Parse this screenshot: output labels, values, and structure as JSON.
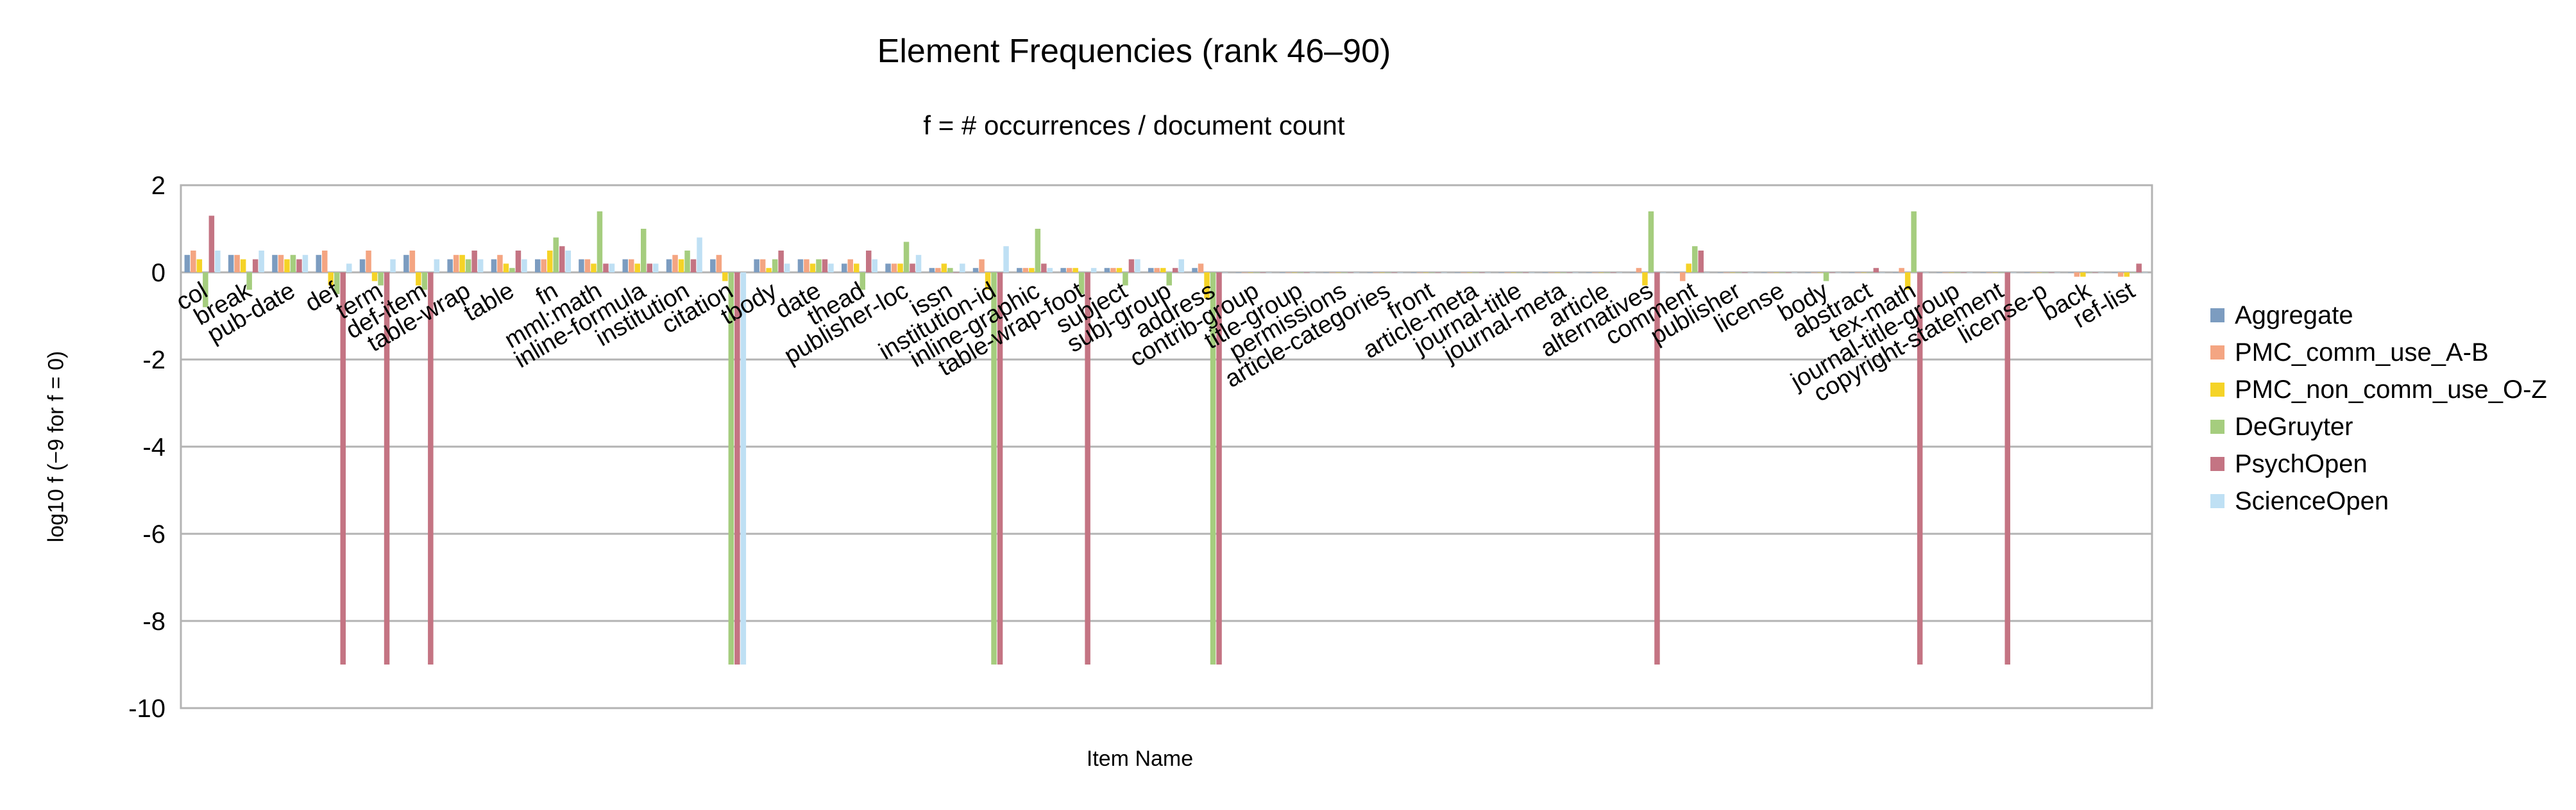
{
  "chart_data": {
    "type": "bar",
    "title": "Element Frequencies (rank 46–90)",
    "subtitle": "f = # occurrences / document count",
    "xlabel": "Item Name",
    "ylabel": "log10  f  (−9 for f = 0)",
    "ylim": [
      -10,
      2
    ],
    "yticks": [
      2,
      0,
      -2,
      -4,
      -6,
      -8,
      -10
    ],
    "grid": true,
    "legend_position": "right",
    "categories": [
      "col",
      "break",
      "pub-date",
      "def",
      "term",
      "def-item",
      "table-wrap",
      "table",
      "fn",
      "mml:math",
      "inline-formula",
      "institution",
      "citation",
      "tbody",
      "date",
      "thead",
      "publisher-loc",
      "issn",
      "institution-id",
      "inline-graphic",
      "table-wrap-foot",
      "subject",
      "subj-group",
      "address",
      "contrib-group",
      "title-group",
      "permissions",
      "article-categories",
      "front",
      "article-meta",
      "journal-title",
      "journal-meta",
      "article",
      "alternatives",
      "comment",
      "publisher",
      "license",
      "body",
      "abstract",
      "tex-math",
      "journal-title-group",
      "copyright-statement",
      "license-p",
      "back",
      "ref-list"
    ],
    "series": [
      {
        "name": "Aggregate",
        "color": "#7c9cc0",
        "values": [
          0.4,
          0.4,
          0.4,
          0.4,
          0.3,
          0.4,
          0.3,
          0.3,
          0.3,
          0.3,
          0.3,
          0.3,
          0.3,
          0.3,
          0.3,
          0.2,
          0.2,
          0.1,
          0.1,
          0.1,
          0.1,
          0.1,
          0.1,
          0.1,
          0.0,
          0.0,
          0.0,
          0.0,
          0.0,
          0.0,
          0.0,
          0.0,
          0.0,
          0.0,
          0.0,
          0.0,
          0.0,
          0.0,
          0.0,
          0.0,
          0.0,
          0.0,
          0.0,
          0.0,
          0.0
        ]
      },
      {
        "name": "PMC_comm_use_A-B",
        "color": "#f4a582",
        "values": [
          0.5,
          0.4,
          0.4,
          0.5,
          0.5,
          0.5,
          0.4,
          0.4,
          0.3,
          0.3,
          0.3,
          0.4,
          0.4,
          0.3,
          0.3,
          0.3,
          0.2,
          0.1,
          0.3,
          0.1,
          0.1,
          0.1,
          0.1,
          0.2,
          0.0,
          0.0,
          0.0,
          0.0,
          0.0,
          0.0,
          0.0,
          0.0,
          0.0,
          0.1,
          -0.2,
          0.0,
          0.0,
          0.0,
          0.0,
          0.1,
          0.0,
          0.0,
          0.0,
          -0.1,
          -0.1
        ]
      },
      {
        "name": "PMC_non_comm_use_O-Z",
        "color": "#f5d327",
        "values": [
          0.3,
          0.3,
          0.3,
          -0.3,
          -0.2,
          -0.3,
          0.4,
          0.2,
          0.5,
          0.2,
          0.2,
          0.3,
          -0.2,
          0.1,
          0.2,
          0.2,
          0.2,
          0.2,
          -0.4,
          0.1,
          0.1,
          0.1,
          0.1,
          -0.6,
          0.0,
          0.0,
          0.0,
          0.0,
          0.0,
          0.0,
          0.0,
          0.0,
          0.0,
          -0.3,
          0.2,
          0.0,
          0.0,
          0.0,
          0.0,
          -0.4,
          0.0,
          0.0,
          0.0,
          -0.1,
          -0.1
        ]
      },
      {
        "name": "DeGruyter",
        "color": "#a5cd7e",
        "values": [
          -0.8,
          -0.4,
          0.4,
          -0.5,
          -0.3,
          -0.4,
          0.3,
          0.1,
          0.8,
          1.4,
          1.0,
          0.5,
          -9,
          0.3,
          0.3,
          -0.4,
          0.7,
          0.1,
          -9,
          1.0,
          -0.5,
          -0.3,
          -0.3,
          -9,
          0.0,
          0.0,
          0.0,
          0.0,
          0.0,
          0.0,
          0.0,
          0.0,
          0.0,
          1.4,
          0.6,
          0.0,
          0.0,
          -0.2,
          0.0,
          1.4,
          0.0,
          0.0,
          0.0,
          0.0,
          0.0
        ]
      },
      {
        "name": "PsychOpen",
        "color": "#c47483",
        "values": [
          1.3,
          0.3,
          0.3,
          -9,
          -9,
          -9,
          0.5,
          0.5,
          0.6,
          0.2,
          0.2,
          0.3,
          -9,
          0.5,
          0.3,
          0.5,
          0.2,
          0.0,
          -9,
          0.2,
          -9,
          0.3,
          0.1,
          -9,
          0.0,
          0.0,
          0.0,
          0.0,
          0.0,
          0.0,
          0.0,
          0.0,
          0.0,
          -9,
          0.5,
          0.0,
          0.0,
          0.0,
          0.1,
          -9,
          0.0,
          -9,
          0.0,
          0.0,
          0.2
        ]
      },
      {
        "name": "ScienceOpen",
        "color": "#bfe0f4",
        "values": [
          0.5,
          0.5,
          0.4,
          0.2,
          0.3,
          0.3,
          0.3,
          0.3,
          0.5,
          0.2,
          0.2,
          0.8,
          -9,
          0.2,
          0.2,
          0.3,
          0.4,
          0.2,
          0.6,
          0.1,
          0.1,
          0.3,
          0.3,
          0.0,
          0.0,
          0.0,
          0.0,
          0.0,
          0.0,
          0.0,
          0.0,
          0.0,
          0.0,
          0.0,
          0.0,
          0.0,
          0.0,
          0.0,
          0.0,
          0.0,
          0.0,
          0.0,
          0.0,
          0.0,
          0.0
        ]
      }
    ]
  }
}
